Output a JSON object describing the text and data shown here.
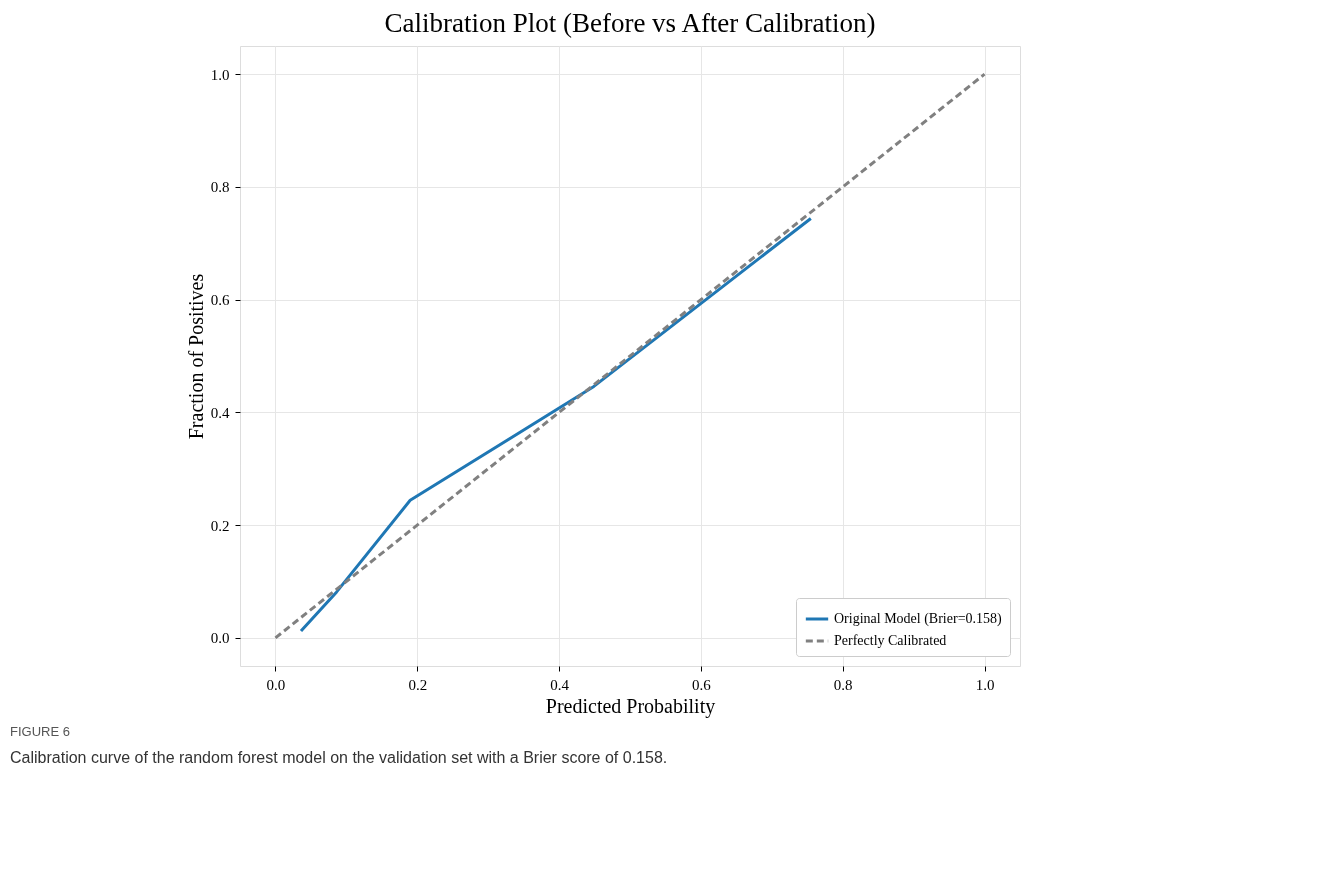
{
  "chart_data": {
    "type": "line",
    "title": "Calibration Plot (Before vs After Calibration)",
    "xlabel": "Predicted Probability",
    "ylabel": "Fraction of Positives",
    "series": [
      {
        "name": "Original Model (Brier=0.158)",
        "color": "#1f77b4",
        "line_style": "solid",
        "x": [
          0.036,
          0.086,
          0.19,
          0.449,
          0.755
        ],
        "values": [
          0.012,
          0.081,
          0.244,
          0.446,
          0.744
        ]
      },
      {
        "name": "Perfectly Calibrated",
        "color": "#808080",
        "line_style": "dashed",
        "x": [
          0,
          1
        ],
        "values": [
          0,
          1
        ]
      }
    ],
    "xlim": [
      -0.05,
      1.05
    ],
    "ylim": [
      -0.05,
      1.05
    ],
    "xticks": [
      {
        "value": 0,
        "label": "0.0"
      },
      0.2,
      0.4,
      0.6,
      0.8,
      {
        "value": 1,
        "label": "1.0"
      }
    ],
    "yticks": [
      {
        "value": 0,
        "label": "0.0"
      },
      0.2,
      0.4,
      0.6,
      0.8,
      {
        "value": 1,
        "label": "1.0"
      }
    ],
    "grid": true,
    "legend": "bottom right",
    "marker": "none",
    "annotations": [
      "FIGURE 6",
      "Calibration curve of the random forest model on the validation set with a Brier score of 0.158."
    ]
  }
}
